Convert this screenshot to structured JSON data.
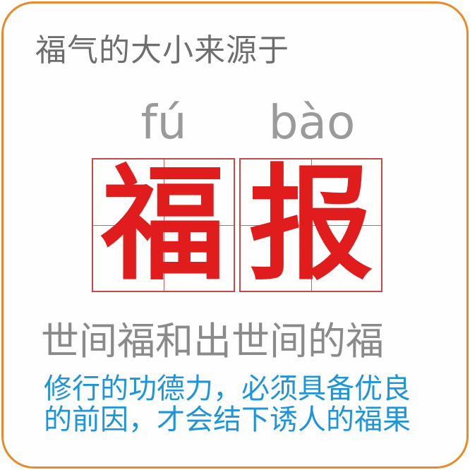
{
  "intro": "福气的大小来源于",
  "pinyin": [
    "fú",
    "bào"
  ],
  "characters": [
    "福",
    "报"
  ],
  "subtitle": "世间福和出世间的福",
  "body_lines": [
    "修行的功德力，必须具备优良",
    "的前因，才会结下诱人的福果"
  ],
  "colors": {
    "border": "#e8892a",
    "hanzi": "#e01c1c",
    "grid": "#c84848",
    "body_text": "#1e95d8",
    "gray_text": "#8a8a8a"
  }
}
